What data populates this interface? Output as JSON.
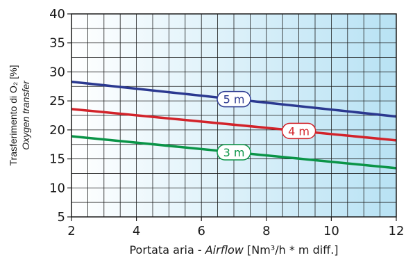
{
  "chart_data": {
    "type": "line",
    "xlim": [
      2,
      12
    ],
    "ylim": [
      5,
      40
    ],
    "x_ticks": [
      "2",
      "4",
      "6",
      "8",
      "10",
      "12"
    ],
    "y_ticks": [
      "5",
      "10",
      "15",
      "20",
      "25",
      "30",
      "35",
      "40"
    ],
    "xlabel_prefix": "Portata aria - ",
    "xlabel_italic": "Airflow",
    "xlabel_suffix": " [Nm³/h * m diff.]",
    "ylabel_line1": "Trasferimento di O₂ [%]",
    "ylabel_line2": "Oxygen transfer",
    "grid": true,
    "background_gradient": [
      "#ffffff",
      "#b8e2f4"
    ],
    "series": [
      {
        "name": "5 m",
        "color": "#2b3990",
        "x": [
          2,
          12
        ],
        "y": [
          28.3,
          22.3
        ],
        "label_at_x": 7.0
      },
      {
        "name": "4 m",
        "color": "#d2232a",
        "x": [
          2,
          12
        ],
        "y": [
          23.6,
          18.2
        ],
        "label_at_x": 9.0
      },
      {
        "name": "3 m",
        "color": "#0a9447",
        "x": [
          2,
          12
        ],
        "y": [
          18.9,
          13.4
        ],
        "label_at_x": 7.0
      }
    ]
  }
}
